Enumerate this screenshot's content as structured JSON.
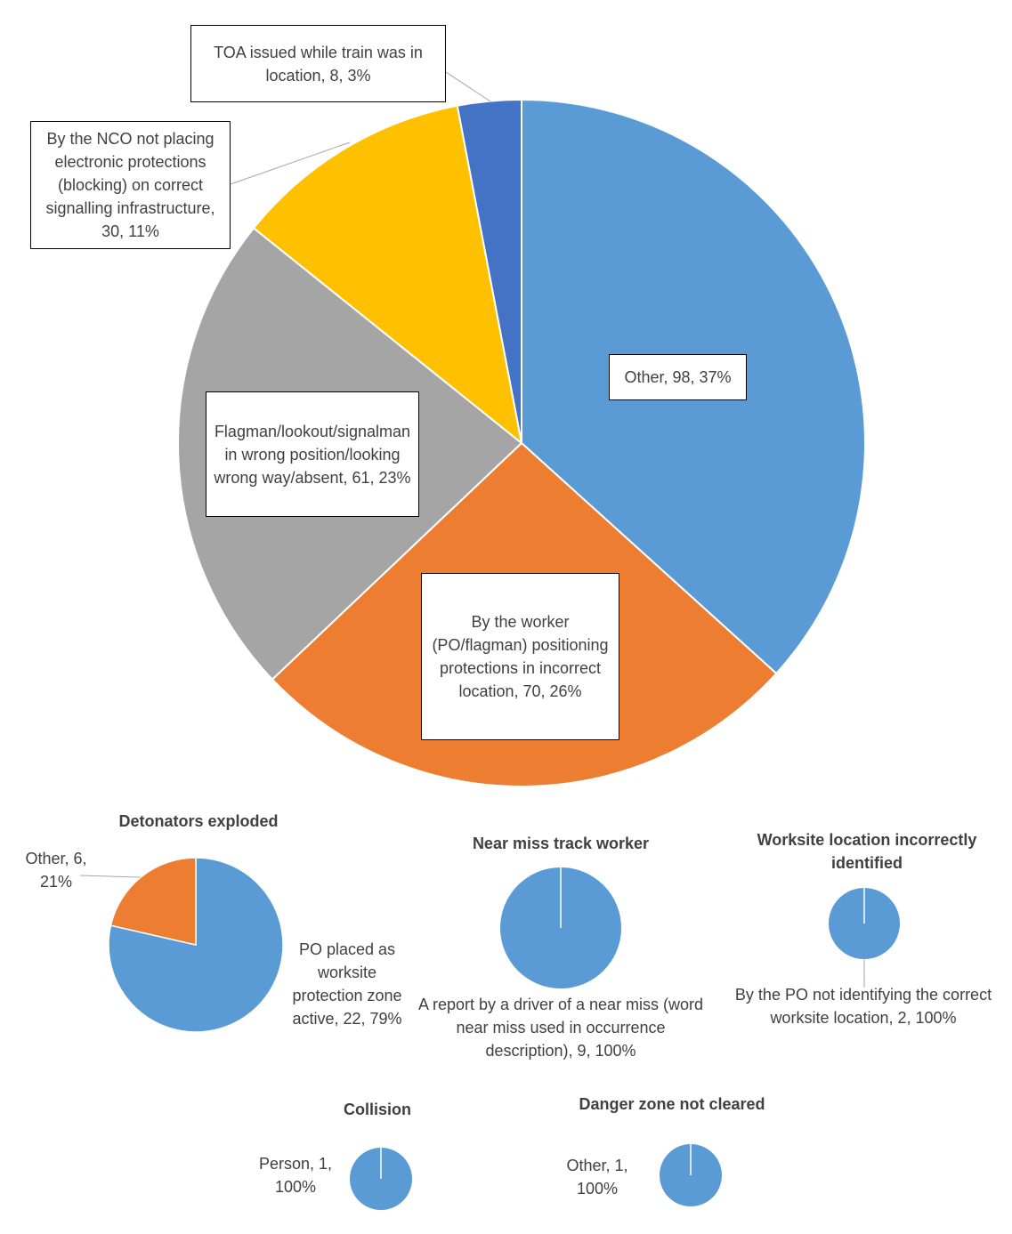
{
  "chart_data": [
    {
      "type": "pie",
      "title": "",
      "slices": [
        {
          "label": "Other",
          "value": 98,
          "percent": "37%",
          "color": "#5B9BD5",
          "text": "Other, 98, 37%"
        },
        {
          "label": "By the worker (PO/flagman) positioning protections in incorrect location",
          "value": 70,
          "percent": "26%",
          "color": "#ED7D31",
          "text": "By the worker (PO/flagman) positioning protections in incorrect location, 70, 26%"
        },
        {
          "label": "Flagman/lookout/signalman in wrong position/looking wrong way/absent",
          "value": 61,
          "percent": "23%",
          "color": "#A5A5A5",
          "text": "Flagman/lookout/signalman in wrong position/looking wrong way/absent, 61, 23%"
        },
        {
          "label": "By the NCO not placing electronic protections (blocking) on correct signalling infrastructure",
          "value": 30,
          "percent": "11%",
          "color": "#FFC000",
          "text": "By the NCO not placing electronic protections (blocking) on correct signalling infrastructure, 30, 11%"
        },
        {
          "label": "TOA issued while train was in location",
          "value": 8,
          "percent": "3%",
          "color": "#4472C4",
          "text": "TOA issued while train was in location, 8, 3%"
        }
      ]
    },
    {
      "type": "pie",
      "title": "Detonators exploded",
      "slices": [
        {
          "label": "PO placed as worksite protection zone active",
          "value": 22,
          "percent": "79%",
          "color": "#5B9BD5",
          "text": "PO placed as worksite protection zone active, 22, 79%"
        },
        {
          "label": "Other",
          "value": 6,
          "percent": "21%",
          "color": "#ED7D31",
          "text": "Other, 6, 21%"
        }
      ]
    },
    {
      "type": "pie",
      "title": "Near miss track worker",
      "slices": [
        {
          "label": "A report by a driver of a near miss (word near miss used in occurrence description)",
          "value": 9,
          "percent": "100%",
          "color": "#5B9BD5",
          "text": "A report by a driver of a near miss (word near miss used in occurrence description), 9, 100%"
        }
      ]
    },
    {
      "type": "pie",
      "title": "Worksite location incorrectly identified",
      "slices": [
        {
          "label": "By the PO not identifying the correct worksite location",
          "value": 2,
          "percent": "100%",
          "color": "#5B9BD5",
          "text": "By the PO not identifying the correct worksite location, 2, 100%"
        }
      ]
    },
    {
      "type": "pie",
      "title": "Collision",
      "slices": [
        {
          "label": "Person",
          "value": 1,
          "percent": "100%",
          "color": "#5B9BD5",
          "text": "Person, 1, 100%"
        }
      ]
    },
    {
      "type": "pie",
      "title": "Danger zone not cleared",
      "slices": [
        {
          "label": "Other",
          "value": 1,
          "percent": "100%",
          "color": "#5B9BD5",
          "text": "Other, 1, 100%"
        }
      ]
    }
  ]
}
